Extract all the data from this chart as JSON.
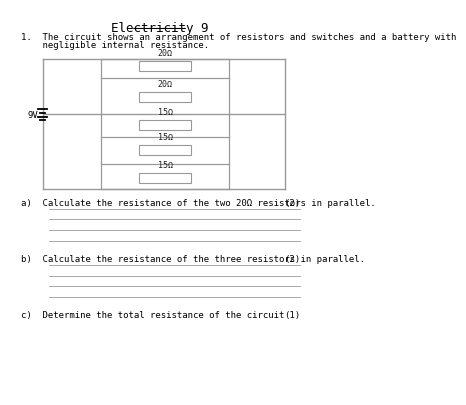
{
  "title": "Electricity 9",
  "question_line1": "1.  The circuit shows an arrangement of resistors and switches and a battery with",
  "question_line2": "    negligible internal resistance.",
  "battery_label": "9V",
  "resistors_top": [
    "20Ω",
    "20Ω"
  ],
  "resistors_bottom": [
    "15Ω",
    "15Ω",
    "15Ω"
  ],
  "qa": "a)  Calculate the resistance of the two 20Ω resistors in parallel.",
  "qb": "b)  Calculate the resistance of the three resistors in parallel.",
  "qc": "c)  Determine the total resistance of the circuit",
  "qa_marks": "(2)",
  "qb_marks": "(2)",
  "qc_marks": "(1)",
  "answer_lines_a": 4,
  "answer_lines_b": 4,
  "background": "#ffffff",
  "line_color": "#999999",
  "text_color": "#222222"
}
